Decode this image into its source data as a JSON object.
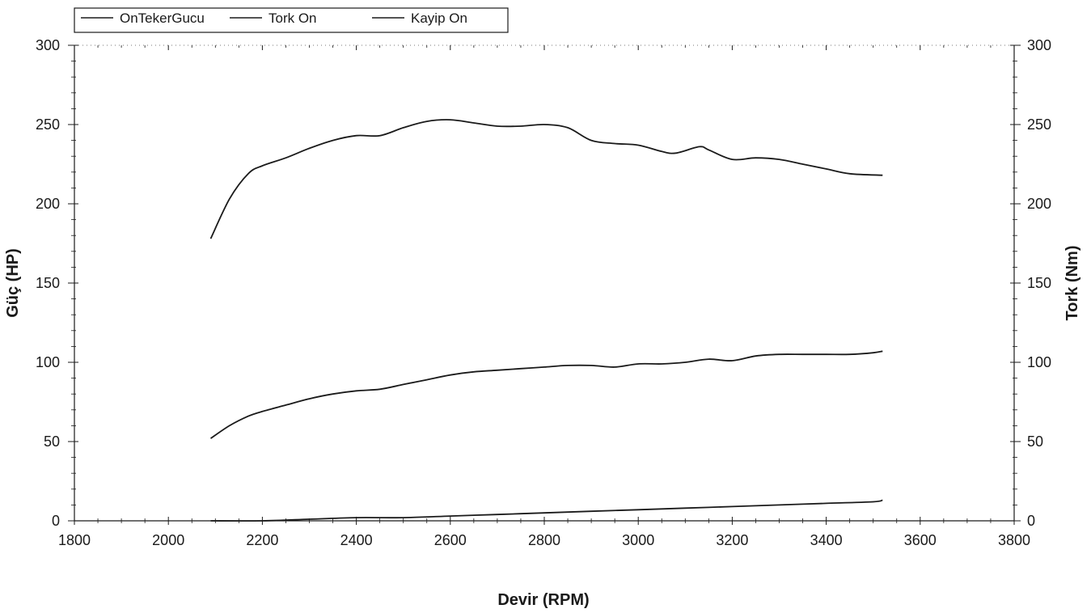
{
  "chart_data": {
    "type": "line",
    "title": "",
    "xlabel": "Devir (RPM)",
    "ylabel": "Güç (HP)",
    "y2label": "Tork (Nm)",
    "xlim": [
      1800,
      3800
    ],
    "ylim": [
      0,
      300
    ],
    "y2lim": [
      0,
      300
    ],
    "x_ticks": [
      "1800",
      "2000",
      "2200",
      "2400",
      "2600",
      "2800",
      "3000",
      "3200",
      "3400",
      "3600",
      "3800"
    ],
    "y_ticks": [
      "0",
      "50",
      "100",
      "150",
      "200",
      "250",
      "300"
    ],
    "y2_ticks": [
      "0",
      "50",
      "100",
      "150",
      "200",
      "250",
      "300"
    ],
    "legend_position": "top-left",
    "grid": false,
    "line_color": "#1a1a1a",
    "series": [
      {
        "name": "OnTekerGucu",
        "x": [
          2090,
          2130,
          2170,
          2200,
          2250,
          2300,
          2350,
          2400,
          2450,
          2500,
          2550,
          2600,
          2650,
          2700,
          2750,
          2800,
          2850,
          2900,
          2950,
          3000,
          3050,
          3100,
          3150,
          3200,
          3250,
          3300,
          3350,
          3400,
          3450,
          3500,
          3520
        ],
        "y": [
          52,
          60,
          66,
          69,
          73,
          77,
          80,
          82,
          83,
          86,
          89,
          92,
          94,
          95,
          96,
          97,
          98,
          98,
          97,
          99,
          99,
          100,
          102,
          101,
          104,
          105,
          105,
          105,
          105,
          106,
          107
        ]
      },
      {
        "name": "Tork On",
        "x": [
          2090,
          2130,
          2170,
          2200,
          2250,
          2300,
          2350,
          2400,
          2450,
          2500,
          2550,
          2600,
          2650,
          2700,
          2750,
          2800,
          2850,
          2900,
          2950,
          3000,
          3050,
          3080,
          3130,
          3150,
          3200,
          3250,
          3300,
          3350,
          3400,
          3450,
          3520
        ],
        "y": [
          178,
          203,
          219,
          224,
          229,
          235,
          240,
          243,
          243,
          248,
          252,
          253,
          251,
          249,
          249,
          250,
          248,
          240,
          238,
          237,
          233,
          232,
          236,
          234,
          228,
          229,
          228,
          225,
          222,
          219,
          218
        ]
      },
      {
        "name": "Kayip On",
        "x": [
          2090,
          2200,
          2300,
          2400,
          2500,
          2600,
          2700,
          2800,
          2900,
          3000,
          3100,
          3200,
          3300,
          3400,
          3500,
          3520
        ],
        "y": [
          0,
          0,
          1,
          2,
          2,
          3,
          4,
          5,
          6,
          7,
          8,
          9,
          10,
          11,
          12,
          13
        ]
      }
    ]
  }
}
